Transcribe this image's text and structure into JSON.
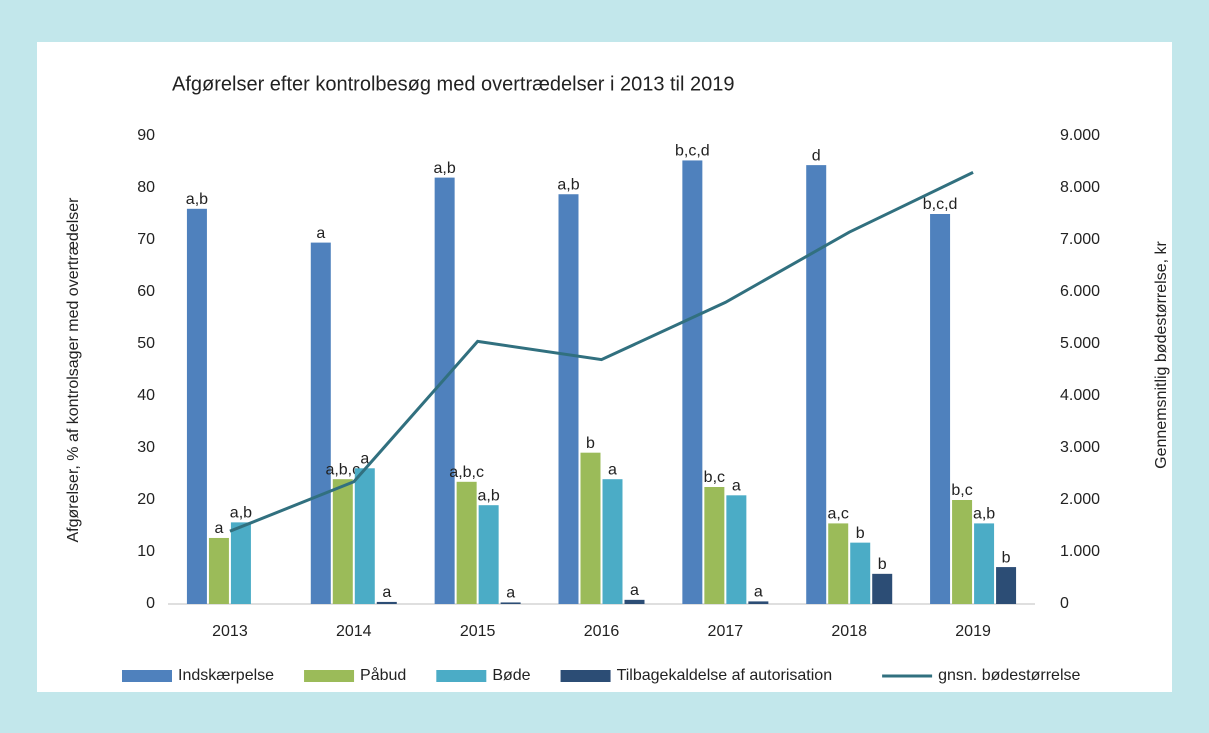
{
  "chart_data": {
    "type": "bar",
    "title": "Afgørelser efter kontrolbesøg med overtrædelser i 2013 til 2019",
    "y_label": "Afgørelser, % af kontrolsager med overtrædelser",
    "y2_label": "Gennemsnitlig bødestørrelse, kr",
    "categories": [
      "2013",
      "2014",
      "2015",
      "2016",
      "2017",
      "2018",
      "2019"
    ],
    "series": [
      {
        "name": "Indskærpelse",
        "type": "bar",
        "color": "#4f81bd",
        "values": [
          76,
          69.5,
          82,
          78.8,
          85.3,
          84.4,
          75
        ],
        "labels": [
          "a,b",
          "a",
          "a,b",
          "a,b",
          "b,c,d",
          "d",
          "b,c,d"
        ]
      },
      {
        "name": "Påbud",
        "type": "bar",
        "color": "#9bbb59",
        "values": [
          12.7,
          24,
          23.5,
          29.1,
          22.5,
          15.5,
          20
        ],
        "labels": [
          "a",
          "a,b,c",
          "a,b,c",
          "b",
          "b,c",
          "a,c",
          "b,c"
        ]
      },
      {
        "name": "Bøde",
        "type": "bar",
        "color": "#4bacc6",
        "values": [
          15.7,
          26.1,
          19,
          24,
          20.9,
          11.8,
          15.5
        ],
        "labels": [
          "a,b",
          "a",
          "a,b",
          "a",
          "a",
          "b",
          "a,b"
        ]
      },
      {
        "name": "Tilbagekaldelse af autorisation",
        "type": "bar",
        "color": "#2c4d75",
        "values": [
          null,
          0.4,
          0.3,
          0.8,
          0.5,
          5.8,
          7.1
        ],
        "labels": [
          null,
          "a",
          "a",
          "a",
          "a",
          "b",
          "b"
        ]
      },
      {
        "name": "gnsn. bødestørrelse",
        "type": "line",
        "axis": "y2",
        "color": "#31707f",
        "values": [
          1400,
          2350,
          5050,
          4700,
          5800,
          7150,
          8300
        ]
      }
    ],
    "ylim": [
      0,
      90
    ],
    "yticks": [
      0,
      10,
      20,
      30,
      40,
      50,
      60,
      70,
      80,
      90
    ],
    "y2lim": [
      0,
      9000
    ],
    "y2ticks": [
      0,
      {
        "value": 1000,
        "label": "1.000"
      },
      {
        "value": 2000,
        "label": "2.000"
      },
      {
        "value": 3000,
        "label": "3.000"
      },
      {
        "value": 4000,
        "label": "4.000"
      },
      {
        "value": 5000,
        "label": "5.000"
      },
      {
        "value": 6000,
        "label": "6.000"
      },
      {
        "value": 7000,
        "label": "7.000"
      },
      {
        "value": 8000,
        "label": "8.000"
      },
      {
        "value": 9000,
        "label": "9.000"
      }
    ],
    "grid": false,
    "legend": "bottom"
  }
}
